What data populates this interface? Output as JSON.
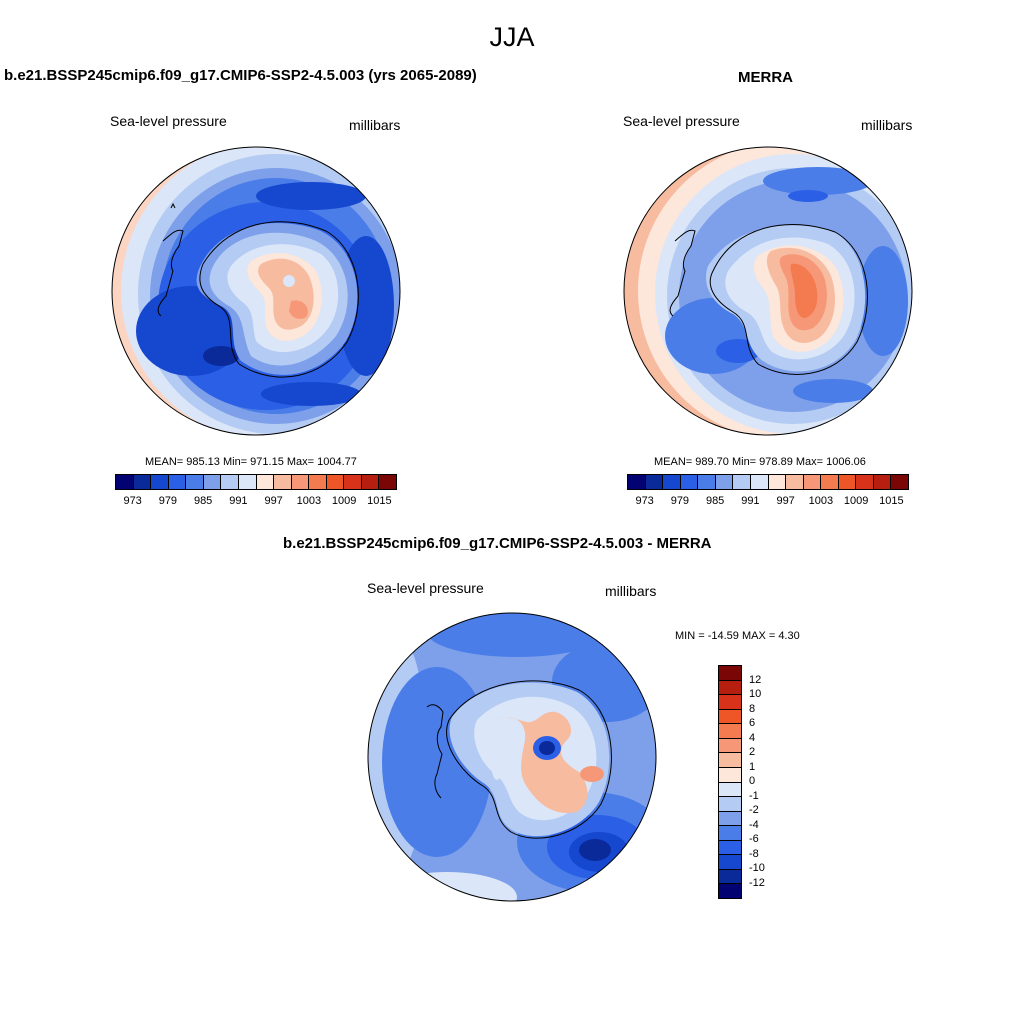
{
  "figure": {
    "title": "JJA"
  },
  "panels": [
    {
      "title": "b.e21.BSSP245cmip6.f09_g17.CMIP6-SSP2-4.5.003 (yrs 2065-2089)",
      "variable": "Sea-level pressure",
      "units": "millibars",
      "stats": "MEAN= 985.13  Min= 971.15  Max= 1004.77"
    },
    {
      "title": "MERRA",
      "variable": "Sea-level pressure",
      "units": "millibars",
      "stats": "MEAN= 989.70  Min= 978.89  Max= 1006.06"
    },
    {
      "title": "b.e21.BSSP245cmip6.f09_g17.CMIP6-SSP2-4.5.003 - MERRA",
      "variable": "Sea-level pressure",
      "units": "millibars",
      "stats": "MIN = -14.59 MAX =   4.30"
    }
  ],
  "colorbar_abs": {
    "colors": [
      "#020273",
      "#0b2a9a",
      "#1547cf",
      "#2a5fe6",
      "#4a7de8",
      "#7ea0ea",
      "#b4cbf3",
      "#dbe6f8",
      "#fde6da",
      "#f7bba0",
      "#f69877",
      "#f47a50",
      "#ee5527",
      "#d8331a",
      "#b61e10",
      "#7b0606"
    ],
    "labels": [
      "973",
      "979",
      "985",
      "991",
      "997",
      "1003",
      "1009",
      "1015"
    ]
  },
  "colorbar_diff": {
    "colors": [
      "#7b0606",
      "#b61e10",
      "#d8331a",
      "#ee5527",
      "#f47a50",
      "#f69877",
      "#f7bba0",
      "#fde6da",
      "#dbe6f8",
      "#b4cbf3",
      "#7ea0ea",
      "#4a7de8",
      "#2a5fe6",
      "#1547cf",
      "#0b2a9a",
      "#020273"
    ],
    "labels": [
      "12",
      "10",
      "8",
      "6",
      "4",
      "2",
      "1",
      "0",
      "-1",
      "-2",
      "-4",
      "-6",
      "-8",
      "-10",
      "-12"
    ]
  }
}
